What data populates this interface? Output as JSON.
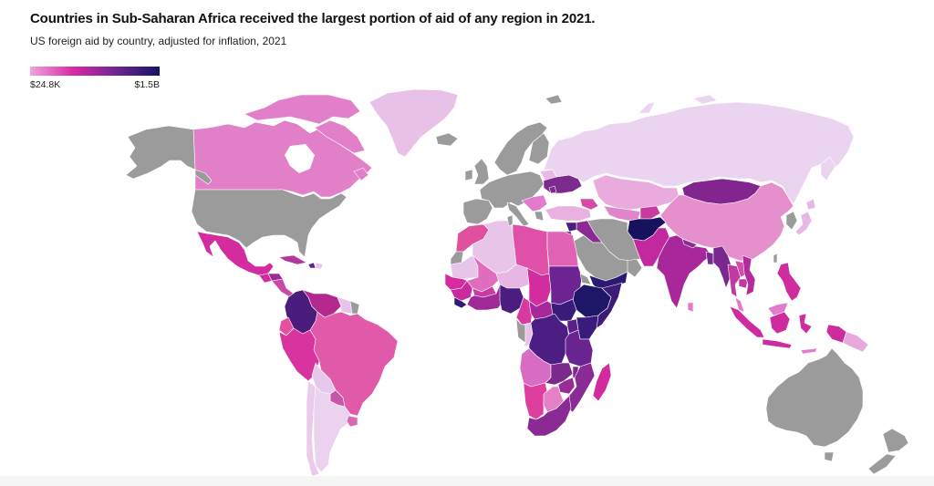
{
  "header": {
    "title": "Countries in Sub-Saharan Africa received the largest portion of aid of any region in 2021.",
    "subtitle": "US foreign aid by country, adjusted for inflation, 2021"
  },
  "legend": {
    "min_label": "$24.8K",
    "max_label": "$1.5B",
    "gradient": [
      "#f3a3dd",
      "#d62aa3",
      "#6e2490",
      "#151463"
    ]
  },
  "map": {
    "no_data_color": "#9b9b9b",
    "border_color": "#ffffff",
    "fills": {
      "canada": "#e27fc9",
      "greenland": "#e8c1e8",
      "mexico": "#d22c9f",
      "guatemala": "#d42aa0",
      "honduras": "#9c2a98",
      "nicaragua": "#c94aa7",
      "cuba": "#b0389d",
      "haiti": "#5e2488",
      "dominican-republic": "#e8c4ea",
      "colombia": "#4a1d7c",
      "venezuela": "#b1298f",
      "guyana": "#e8c4ea",
      "ecuador": "#e6509f",
      "peru": "#d8339e",
      "brazil": "#e05aa9",
      "bolivia": "#e9c6eb",
      "paraguay": "#c557a8",
      "chile": "#eacbea",
      "argentina": "#ebd2ee",
      "uruguay": "#d86ab5",
      "belarus": "#e9b8e4",
      "ukraine": "#7c2a8e",
      "moldova": "#7c2a8e",
      "serbia": "#e07ccb",
      "turkey": "#e9b0e0",
      "georgia": "#d64aa8",
      "russia": "#ebd4f0",
      "kazakhstan": "#e9aade",
      "uzbekistan": "#e085c8",
      "kyrgyzstan": "#c83aa2",
      "mongolia": "#83258f",
      "china": "#e58fcd",
      "japan": "#e8b8e4",
      "afghanistan": "#16125e",
      "pakistan": "#c2299f",
      "iraq": "#8a2a93",
      "syria": "#4b1d7c",
      "jordan": "#6a2a90",
      "yemen": "#2a1a72",
      "india": "#a8279a",
      "nepal": "#8a2a96",
      "bangladesh": "#7a2a8e",
      "myanmar": "#7b288e",
      "thailand": "#c2399f",
      "laos": "#d84aa8",
      "cambodia": "#c23aa0",
      "vietnam": "#b62a9c",
      "sri-lanka": "#e07ccb",
      "malaysia": "#e07ccb",
      "philippines": "#cf2d9f",
      "indonesia": "#cd2b9e",
      "timor-leste": "#e07ccb",
      "papua-new-guinea": "#e8a8dc",
      "morocco": "#e0509f",
      "algeria": "#e8c4ea",
      "libya": "#e050a8",
      "egypt": "#e063b4",
      "mauritania": "#e8c4ea",
      "mali": "#e06cbe",
      "niger": "#e8b6e4",
      "chad": "#d32c9e",
      "sudan": "#6b2491",
      "ethiopia": "#1e1666",
      "somalia": "#3c1c78",
      "senegal": "#d72a9e",
      "guinea": "#c92aa0",
      "liberia": "#2e1a74",
      "burkina-faso": "#c83aa2",
      "ghana": "#9f2a97",
      "nigeria": "#4c1d7e",
      "cameroon": "#d838a2",
      "central-african-republic": "#a8289a",
      "south-sudan": "#3a1a7a",
      "congo": "#e7c1e8",
      "dr-congo": "#4c1d82",
      "uganda": "#5a2088",
      "kenya": "#3a1a7a",
      "tanzania": "#6a2490",
      "angola": "#d86cc2",
      "zambia": "#7b2a8c",
      "malawi": "#7b2a8c",
      "mozambique": "#8a2a95",
      "zimbabwe": "#9a2a96",
      "namibia": "#e03e9e",
      "botswana": "#e480c6",
      "south-africa": "#8a2a92",
      "madagascar": "#d42aa0"
    }
  }
}
